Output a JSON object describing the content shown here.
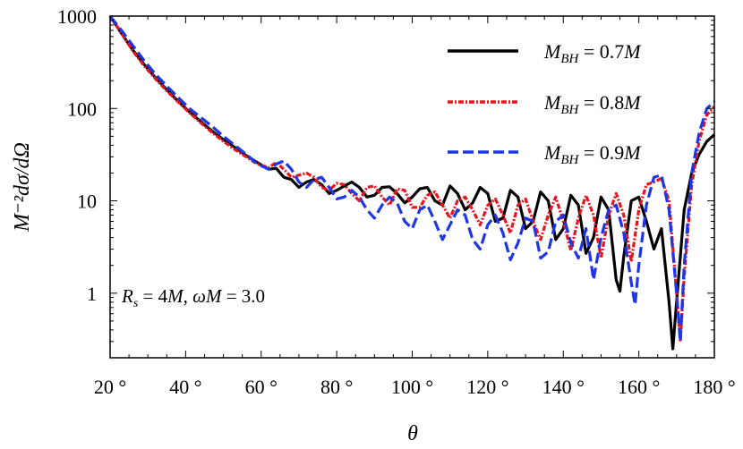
{
  "chart_data": {
    "type": "line",
    "title": "",
    "xlabel": "θ",
    "ylabel": "M⁻²dσ/dΩ",
    "xlim": [
      20,
      180
    ],
    "ylim": [
      0.2,
      1000
    ],
    "yscale": "log",
    "grid": false,
    "legend_position": "top-right",
    "x_ticks": [
      20,
      40,
      60,
      80,
      100,
      120,
      140,
      160,
      180
    ],
    "x_tick_labels": [
      "20 °",
      "40 °",
      "60 °",
      "80 °",
      "100 °",
      "120 °",
      "140 °",
      "160 °",
      "180 °"
    ],
    "y_ticks": [
      1,
      10,
      100,
      1000
    ],
    "y_tick_labels": [
      "1",
      "10",
      "100",
      "1000"
    ],
    "annotation": "Rs = 4M, ωM = 3.0",
    "series": [
      {
        "name": "MBH = 0.7M",
        "color": "#000000",
        "style": "solid",
        "points": [
          [
            20,
            1000
          ],
          [
            23,
            650
          ],
          [
            26,
            430
          ],
          [
            29,
            300
          ],
          [
            32,
            215
          ],
          [
            35,
            160
          ],
          [
            38,
            120
          ],
          [
            41,
            92
          ],
          [
            44,
            72
          ],
          [
            47,
            57
          ],
          [
            50,
            46
          ],
          [
            53,
            38
          ],
          [
            56,
            31
          ],
          [
            59,
            26
          ],
          [
            62,
            22
          ],
          [
            64,
            22.5
          ],
          [
            66,
            18
          ],
          [
            68,
            17
          ],
          [
            70,
            14
          ],
          [
            72,
            16
          ],
          [
            74,
            17
          ],
          [
            76,
            15
          ],
          [
            78,
            12
          ],
          [
            80,
            13
          ],
          [
            82,
            14.5
          ],
          [
            84,
            16
          ],
          [
            86,
            14
          ],
          [
            88,
            11
          ],
          [
            90,
            11.5
          ],
          [
            92,
            14
          ],
          [
            94,
            14.2
          ],
          [
            96,
            12
          ],
          [
            98,
            9.5
          ],
          [
            100,
            11
          ],
          [
            102,
            13.5
          ],
          [
            104,
            14
          ],
          [
            106,
            10
          ],
          [
            108,
            9
          ],
          [
            110,
            14.5
          ],
          [
            112,
            12
          ],
          [
            114,
            8
          ],
          [
            116,
            9.5
          ],
          [
            118,
            14
          ],
          [
            120,
            12
          ],
          [
            122,
            6
          ],
          [
            124,
            6.5
          ],
          [
            126,
            13
          ],
          [
            128,
            11
          ],
          [
            130,
            5
          ],
          [
            132,
            6
          ],
          [
            134,
            12.5
          ],
          [
            136,
            10
          ],
          [
            138,
            3.8
          ],
          [
            140,
            5
          ],
          [
            142,
            11.5
          ],
          [
            144,
            9
          ],
          [
            146,
            2.7
          ],
          [
            148,
            4
          ],
          [
            150,
            11
          ],
          [
            152,
            8
          ],
          [
            154,
            1.4
          ],
          [
            155,
            1.05
          ],
          [
            156,
            2.5
          ],
          [
            158,
            10
          ],
          [
            160,
            11
          ],
          [
            162,
            6
          ],
          [
            164,
            3
          ],
          [
            166,
            5
          ],
          [
            168,
            0.8
          ],
          [
            169,
            0.25
          ],
          [
            170,
            0.8
          ],
          [
            171,
            2.5
          ],
          [
            172,
            8
          ],
          [
            174,
            20
          ],
          [
            176,
            32
          ],
          [
            178,
            44
          ],
          [
            180,
            52
          ]
        ]
      },
      {
        "name": "MBH = 0.8M",
        "color": "#e8141e",
        "style": "dash-dot",
        "points": [
          [
            20,
            1000
          ],
          [
            23,
            650
          ],
          [
            26,
            420
          ],
          [
            29,
            290
          ],
          [
            32,
            210
          ],
          [
            35,
            155
          ],
          [
            38,
            118
          ],
          [
            41,
            90
          ],
          [
            44,
            70
          ],
          [
            47,
            55
          ],
          [
            50,
            44
          ],
          [
            53,
            36
          ],
          [
            56,
            30
          ],
          [
            59,
            25
          ],
          [
            62,
            23
          ],
          [
            64,
            26
          ],
          [
            66,
            22
          ],
          [
            68,
            18
          ],
          [
            70,
            19
          ],
          [
            72,
            20
          ],
          [
            74,
            18
          ],
          [
            76,
            14
          ],
          [
            78,
            13
          ],
          [
            80,
            15.5
          ],
          [
            82,
            15
          ],
          [
            84,
            12
          ],
          [
            86,
            10
          ],
          [
            88,
            14
          ],
          [
            90,
            14.5
          ],
          [
            92,
            11
          ],
          [
            94,
            9
          ],
          [
            96,
            13.5
          ],
          [
            98,
            13
          ],
          [
            100,
            8.5
          ],
          [
            102,
            8.5
          ],
          [
            104,
            11.5
          ],
          [
            106,
            12.5
          ],
          [
            108,
            9
          ],
          [
            110,
            6.5
          ],
          [
            112,
            10
          ],
          [
            114,
            11
          ],
          [
            116,
            8
          ],
          [
            118,
            5.5
          ],
          [
            120,
            9
          ],
          [
            122,
            10.5
          ],
          [
            124,
            7
          ],
          [
            126,
            4.5
          ],
          [
            128,
            9
          ],
          [
            130,
            10.5
          ],
          [
            132,
            6
          ],
          [
            134,
            3.8
          ],
          [
            136,
            7
          ],
          [
            138,
            11
          ],
          [
            140,
            6
          ],
          [
            142,
            2.9
          ],
          [
            144,
            6.5
          ],
          [
            146,
            11.5
          ],
          [
            148,
            7
          ],
          [
            150,
            2.4
          ],
          [
            152,
            7
          ],
          [
            154,
            12
          ],
          [
            156,
            7
          ],
          [
            158,
            2.2
          ],
          [
            160,
            8
          ],
          [
            162,
            15
          ],
          [
            164,
            16
          ],
          [
            166,
            17.5
          ],
          [
            168,
            10
          ],
          [
            170,
            1.0
          ],
          [
            171,
            0.3
          ],
          [
            172,
            1.5
          ],
          [
            174,
            15
          ],
          [
            176,
            45
          ],
          [
            178,
            85
          ],
          [
            180,
            105
          ]
        ]
      },
      {
        "name": "MBH = 0.9M",
        "color": "#1f36e6",
        "style": "dashed",
        "points": [
          [
            20,
            1000
          ],
          [
            23,
            700
          ],
          [
            26,
            480
          ],
          [
            29,
            330
          ],
          [
            32,
            235
          ],
          [
            35,
            175
          ],
          [
            38,
            132
          ],
          [
            41,
            100
          ],
          [
            44,
            80
          ],
          [
            47,
            64
          ],
          [
            50,
            50
          ],
          [
            53,
            40
          ],
          [
            56,
            32
          ],
          [
            59,
            25
          ],
          [
            62,
            22
          ],
          [
            64,
            25
          ],
          [
            66,
            27
          ],
          [
            68,
            22
          ],
          [
            70,
            16
          ],
          [
            72,
            14
          ],
          [
            74,
            17
          ],
          [
            76,
            18
          ],
          [
            78,
            14
          ],
          [
            80,
            10.5
          ],
          [
            82,
            11
          ],
          [
            84,
            13
          ],
          [
            86,
            11
          ],
          [
            88,
            8
          ],
          [
            90,
            6.5
          ],
          [
            92,
            9
          ],
          [
            94,
            11
          ],
          [
            96,
            9.5
          ],
          [
            98,
            6
          ],
          [
            100,
            5
          ],
          [
            102,
            8
          ],
          [
            104,
            9
          ],
          [
            106,
            6
          ],
          [
            108,
            3.8
          ],
          [
            110,
            5.5
          ],
          [
            112,
            8
          ],
          [
            114,
            7
          ],
          [
            116,
            3.8
          ],
          [
            118,
            3
          ],
          [
            120,
            5.5
          ],
          [
            122,
            7
          ],
          [
            124,
            4.5
          ],
          [
            126,
            2.3
          ],
          [
            128,
            3.5
          ],
          [
            130,
            6.5
          ],
          [
            132,
            6
          ],
          [
            134,
            2.4
          ],
          [
            136,
            2.8
          ],
          [
            138,
            6
          ],
          [
            140,
            7
          ],
          [
            142,
            3.5
          ],
          [
            144,
            2.4
          ],
          [
            146,
            5
          ],
          [
            148,
            1.4
          ],
          [
            150,
            4
          ],
          [
            152,
            8
          ],
          [
            154,
            9
          ],
          [
            156,
            4.5
          ],
          [
            158,
            1.3
          ],
          [
            159,
            0.75
          ],
          [
            160,
            2
          ],
          [
            162,
            9
          ],
          [
            164,
            18
          ],
          [
            166,
            19
          ],
          [
            168,
            8
          ],
          [
            170,
            1.0
          ],
          [
            171,
            0.3
          ],
          [
            172,
            2
          ],
          [
            174,
            20
          ],
          [
            176,
            55
          ],
          [
            178,
            100
          ],
          [
            180,
            118
          ]
        ]
      }
    ]
  }
}
